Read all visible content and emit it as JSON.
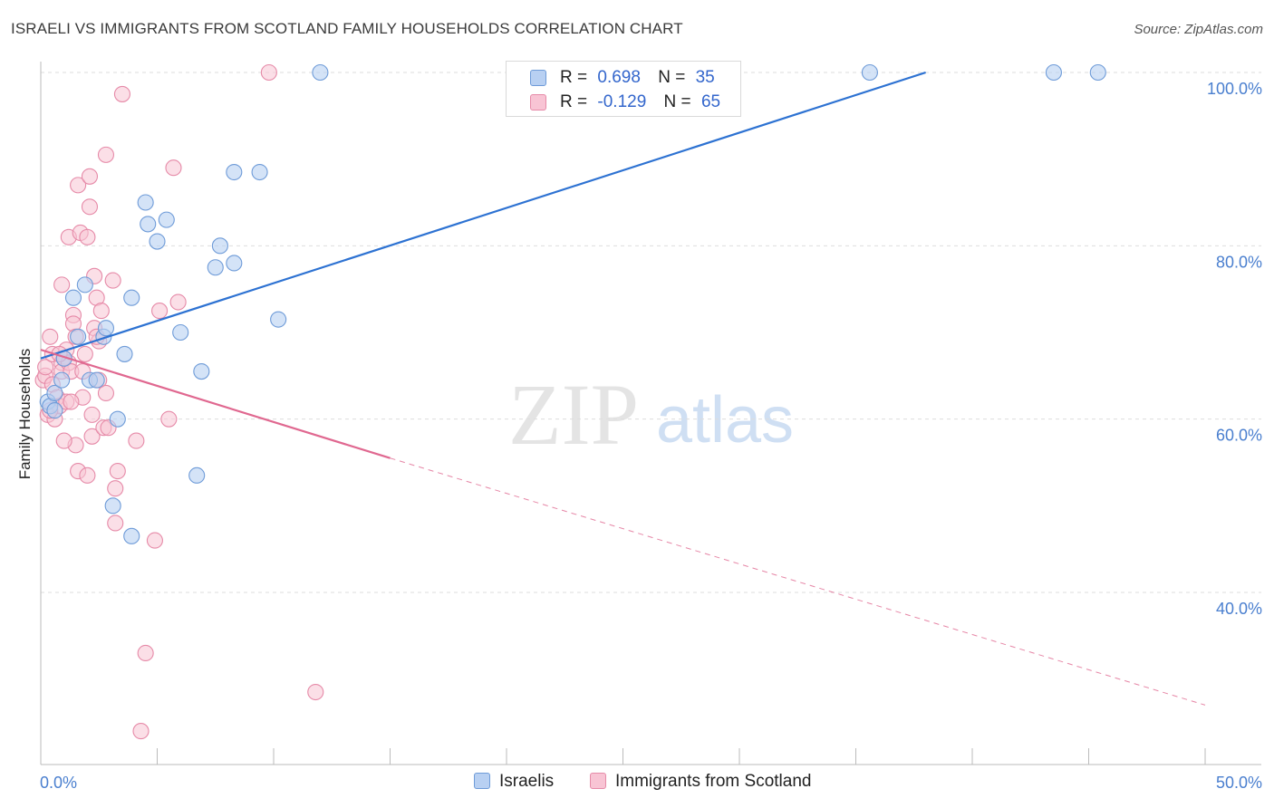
{
  "title": "ISRAELI VS IMMIGRANTS FROM SCOTLAND FAMILY HOUSEHOLDS CORRELATION CHART",
  "source": "Source: ZipAtlas.com",
  "watermark": {
    "zip": "ZIP",
    "atlas": "atlas"
  },
  "legend": {
    "rows": [
      {
        "r_label": "R =",
        "r_value": "0.698",
        "n_label": "N =",
        "n_value": "35"
      },
      {
        "r_label": "R =",
        "r_value": "-0.129",
        "n_label": "N =",
        "n_value": "65"
      }
    ]
  },
  "bottom_legend": {
    "israelis": "Israelis",
    "scotland": "Immigrants from Scotland"
  },
  "colors": {
    "israelis_fill": "#b8d0f2",
    "israelis_stroke": "#6e9bd8",
    "israelis_line": "#2d72d2",
    "scotland_fill": "#f8c4d4",
    "scotland_stroke": "#e68aa8",
    "scotland_line": "#e06890",
    "tick_text": "#4a7fcf",
    "grid": "#dddddd"
  },
  "chart_data": {
    "type": "scatter",
    "title": "ISRAELI VS IMMIGRANTS FROM SCOTLAND FAMILY HOUSEHOLDS CORRELATION CHART",
    "xlabel": "",
    "ylabel": "Family Households",
    "xlim": [
      0,
      50
    ],
    "ylim": [
      20,
      102
    ],
    "x_tick_labels": [
      "0.0%",
      "50.0%"
    ],
    "y_ticks": [
      {
        "value": 40,
        "label": "40.0%"
      },
      {
        "value": 60,
        "label": "60.0%"
      },
      {
        "value": 80,
        "label": "80.0%"
      },
      {
        "value": 100,
        "label": "100.0%"
      }
    ],
    "grid": true,
    "legend_position": "top-center",
    "series": [
      {
        "name": "Israelis",
        "r": 0.698,
        "n": 35,
        "trend": {
          "x0": 0.0,
          "y0": 67.0,
          "x1": 38.0,
          "y1": 100.0,
          "dashed_to": null
        },
        "points": [
          [
            0.3,
            62.0
          ],
          [
            0.4,
            61.5
          ],
          [
            0.6,
            63.0
          ],
          [
            0.9,
            64.5
          ],
          [
            1.0,
            67.0
          ],
          [
            1.4,
            74.0
          ],
          [
            1.6,
            69.5
          ],
          [
            1.9,
            75.5
          ],
          [
            2.1,
            64.5
          ],
          [
            2.4,
            64.5
          ],
          [
            2.7,
            69.5
          ],
          [
            2.8,
            70.5
          ],
          [
            3.1,
            50.0
          ],
          [
            3.3,
            60.0
          ],
          [
            3.6,
            67.5
          ],
          [
            3.9,
            46.5
          ],
          [
            3.9,
            74.0
          ],
          [
            4.5,
            85.0
          ],
          [
            4.6,
            82.5
          ],
          [
            5.0,
            80.5
          ],
          [
            5.4,
            83.0
          ],
          [
            6.0,
            70.0
          ],
          [
            6.9,
            65.5
          ],
          [
            6.7,
            53.5
          ],
          [
            7.5,
            77.5
          ],
          [
            7.7,
            80.0
          ],
          [
            8.3,
            78.0
          ],
          [
            8.3,
            88.5
          ],
          [
            9.4,
            88.5
          ],
          [
            10.2,
            71.5
          ],
          [
            12.0,
            100.0
          ],
          [
            35.6,
            100.0
          ],
          [
            43.5,
            100.0
          ],
          [
            45.4,
            100.0
          ],
          [
            0.6,
            61.0
          ]
        ]
      },
      {
        "name": "Immigrants from Scotland",
        "r": -0.129,
        "n": 65,
        "trend": {
          "x0": 0.0,
          "y0": 68.0,
          "x1": 15.0,
          "y1": 55.5,
          "dashed_to": {
            "x": 50.0,
            "y": 27.0
          }
        },
        "points": [
          [
            0.1,
            64.5
          ],
          [
            0.2,
            65.0
          ],
          [
            0.2,
            66.0
          ],
          [
            0.3,
            60.5
          ],
          [
            0.4,
            69.5
          ],
          [
            0.5,
            67.5
          ],
          [
            0.5,
            64.0
          ],
          [
            0.6,
            60.0
          ],
          [
            0.7,
            62.5
          ],
          [
            0.8,
            61.5
          ],
          [
            0.9,
            66.5
          ],
          [
            0.9,
            65.5
          ],
          [
            0.9,
            75.5
          ],
          [
            1.0,
            67.0
          ],
          [
            1.1,
            68.0
          ],
          [
            1.1,
            62.0
          ],
          [
            1.2,
            66.5
          ],
          [
            1.2,
            81.0
          ],
          [
            1.3,
            65.5
          ],
          [
            1.4,
            72.0
          ],
          [
            1.4,
            71.0
          ],
          [
            1.5,
            69.5
          ],
          [
            1.5,
            57.0
          ],
          [
            1.6,
            87.0
          ],
          [
            1.6,
            54.0
          ],
          [
            1.7,
            81.5
          ],
          [
            1.8,
            62.5
          ],
          [
            1.8,
            65.5
          ],
          [
            1.9,
            67.5
          ],
          [
            2.0,
            53.5
          ],
          [
            2.0,
            81.0
          ],
          [
            2.1,
            88.0
          ],
          [
            2.1,
            84.5
          ],
          [
            2.2,
            58.0
          ],
          [
            2.2,
            60.5
          ],
          [
            2.3,
            76.5
          ],
          [
            2.3,
            70.5
          ],
          [
            2.4,
            74.0
          ],
          [
            2.5,
            69.0
          ],
          [
            2.5,
            64.5
          ],
          [
            2.6,
            72.5
          ],
          [
            2.7,
            59.0
          ],
          [
            2.8,
            63.0
          ],
          [
            2.8,
            90.5
          ],
          [
            2.9,
            59.0
          ],
          [
            3.1,
            76.0
          ],
          [
            3.2,
            52.0
          ],
          [
            3.2,
            48.0
          ],
          [
            3.3,
            54.0
          ],
          [
            3.5,
            97.5
          ],
          [
            4.1,
            57.5
          ],
          [
            4.3,
            24.0
          ],
          [
            4.5,
            33.0
          ],
          [
            4.9,
            46.0
          ],
          [
            5.1,
            72.5
          ],
          [
            5.5,
            60.0
          ],
          [
            5.7,
            89.0
          ],
          [
            5.9,
            73.5
          ],
          [
            9.8,
            100.0
          ],
          [
            11.8,
            28.5
          ],
          [
            0.4,
            61.0
          ],
          [
            1.3,
            62.0
          ],
          [
            2.4,
            69.5
          ],
          [
            0.8,
            67.5
          ],
          [
            1.0,
            57.5
          ]
        ]
      }
    ]
  }
}
